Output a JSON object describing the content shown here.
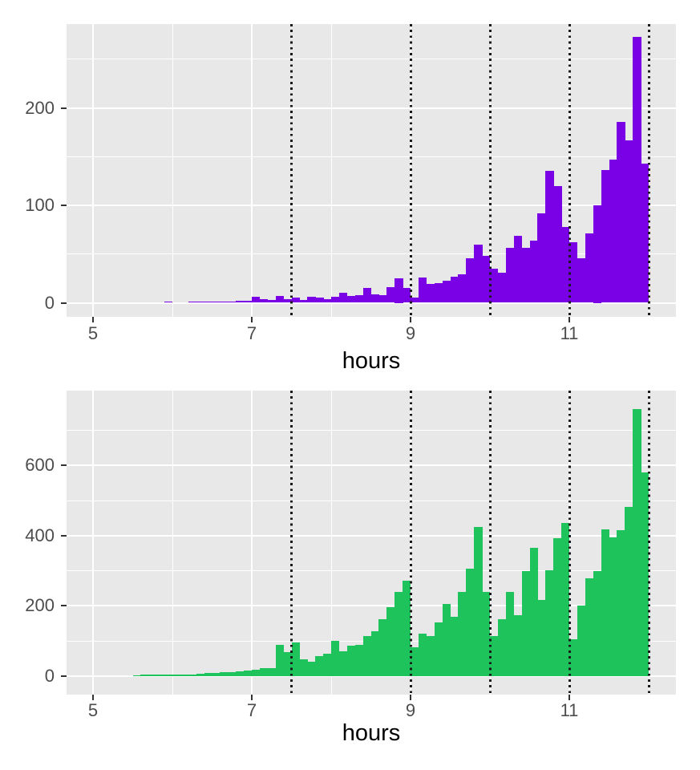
{
  "figure": {
    "x_axis_title": "hours"
  },
  "style": {
    "panel_background": "#E8E8E8",
    "gridline_color": "#FFFFFF",
    "tick_label_color": "#4D4D4D",
    "axis_title_color": "#000000",
    "tick_mark_color": "#333333",
    "vline_color": "#1A1A1A",
    "top_bar_color": "#7A01E6",
    "bottom_bar_color": "#1FC35C"
  },
  "chart_data": [
    {
      "type": "bar",
      "name": "top-histogram",
      "bar_color": "#7A01E6",
      "x_label": "hours",
      "ylabel": "",
      "x_ticks": [
        5,
        7,
        9,
        11
      ],
      "x_tick_labels": [
        "5",
        "7",
        "9",
        "11"
      ],
      "x_minor_gridlines": [
        6,
        8,
        10,
        12
      ],
      "y_ticks": [
        0,
        100,
        200
      ],
      "y_tick_labels": [
        "0",
        "100",
        "200"
      ],
      "y_minor_gridlines": [
        50,
        150,
        250
      ],
      "xlim": [
        4.67,
        12.34
      ],
      "ylim": [
        0,
        286
      ],
      "grid": "on",
      "legend": "none",
      "vlines_dotted": [
        7.5,
        9,
        10,
        11,
        12
      ],
      "bin_start": 5.4,
      "bin_width": 0.1,
      "values": [
        0,
        0,
        0,
        0,
        0,
        1,
        0,
        0,
        1,
        1,
        1,
        1,
        1,
        1,
        2,
        2,
        6,
        4,
        3,
        7,
        4,
        5,
        3,
        6,
        5,
        4,
        6,
        10,
        7,
        8,
        15,
        9,
        8,
        16,
        25,
        15,
        5,
        26,
        19,
        20,
        23,
        27,
        29,
        46,
        60,
        48,
        35,
        31,
        56,
        69,
        56,
        64,
        92,
        135,
        120,
        78,
        62,
        46,
        71,
        100,
        136,
        147,
        186,
        167,
        273,
        143
      ]
    },
    {
      "type": "bar",
      "name": "bottom-histogram",
      "bar_color": "#1FC35C",
      "x_label": "hours",
      "ylabel": "",
      "x_ticks": [
        5,
        7,
        9,
        11
      ],
      "x_tick_labels": [
        "5",
        "7",
        "9",
        "11"
      ],
      "x_minor_gridlines": [
        6,
        8,
        10,
        12
      ],
      "y_ticks": [
        0,
        200,
        400,
        600
      ],
      "y_tick_labels": [
        "0",
        "200",
        "400",
        "600"
      ],
      "y_minor_gridlines": [
        100,
        300,
        500,
        700
      ],
      "xlim": [
        4.67,
        12.34
      ],
      "ylim": [
        0,
        815
      ],
      "grid": "on",
      "legend": "none",
      "vlines_dotted": [
        7.5,
        9,
        10,
        11,
        12
      ],
      "bin_start": 5.5,
      "bin_width": 0.1,
      "values": [
        3,
        4,
        4,
        5,
        4,
        4,
        5,
        5,
        7,
        9,
        10,
        11,
        11,
        13,
        15,
        19,
        22,
        23,
        90,
        68,
        96,
        48,
        41,
        58,
        65,
        101,
        71,
        86,
        90,
        115,
        127,
        161,
        196,
        239,
        272,
        82,
        122,
        114,
        153,
        205,
        169,
        239,
        306,
        424,
        239,
        114,
        161,
        239,
        173,
        298,
        366,
        217,
        302,
        392,
        435,
        104,
        200,
        279,
        298,
        417,
        394,
        415,
        482,
        760,
        580
      ]
    }
  ]
}
